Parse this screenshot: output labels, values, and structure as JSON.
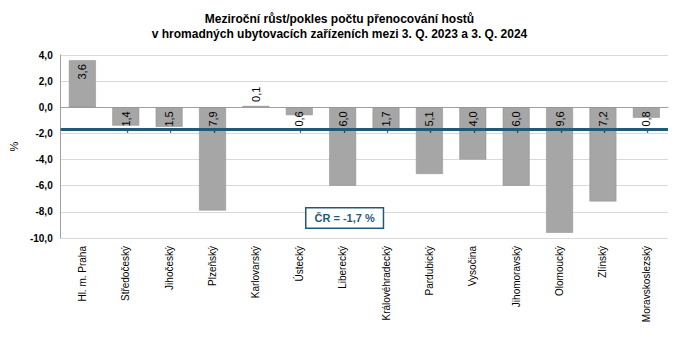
{
  "chart_data": {
    "type": "bar",
    "title": "Meziroční růst/pokles počtu přenocování hostů\nv hromadných ubytovacích zařízeních mezi 3. Q. 2023 a 3. Q. 2024",
    "y_label": "%",
    "categories": [
      "Hl. m. Praha",
      "Středočeský",
      "Jihočeský",
      "Plzeňský",
      "Karlovarský",
      "Ústecký",
      "Liberecký",
      "Královéhradecký",
      "Pardubický",
      "Vysočina",
      "Jihomoravský",
      "Olomoucký",
      "Zlínský",
      "Moravskoslezský"
    ],
    "values": [
      3.6,
      -1.4,
      -1.5,
      -7.9,
      0.1,
      -0.6,
      -6.0,
      -1.7,
      -5.1,
      -4.0,
      -6.0,
      -9.6,
      -7.2,
      -0.8
    ],
    "value_labels": [
      "3,6",
      "- 1,4",
      "- 1,5",
      "- 7,9",
      "0,1",
      "- 0,6",
      "- 6,0",
      "- 1,7",
      "- 5,1",
      "- 4,0",
      "- 6,0",
      "- 9,6",
      "- 7,2",
      "- 0,8"
    ],
    "color": "#a6a6a6",
    "ylim": [
      -10,
      4
    ],
    "yticks": [
      {
        "value": -10,
        "label": "-10,0"
      },
      {
        "value": -8,
        "label": "-8,0"
      },
      {
        "value": -6,
        "label": "-6,0"
      },
      {
        "value": -4,
        "label": "-4,0"
      },
      {
        "value": -2,
        "label": "-2,0"
      },
      {
        "value": 0,
        "label": "0,0"
      },
      {
        "value": 2,
        "label": "2,0"
      },
      {
        "value": 4,
        "label": "4,0"
      }
    ],
    "grid": true,
    "data_labels": true,
    "average": {
      "value": -1.7,
      "label": "ČR = -1,7 %"
    }
  }
}
